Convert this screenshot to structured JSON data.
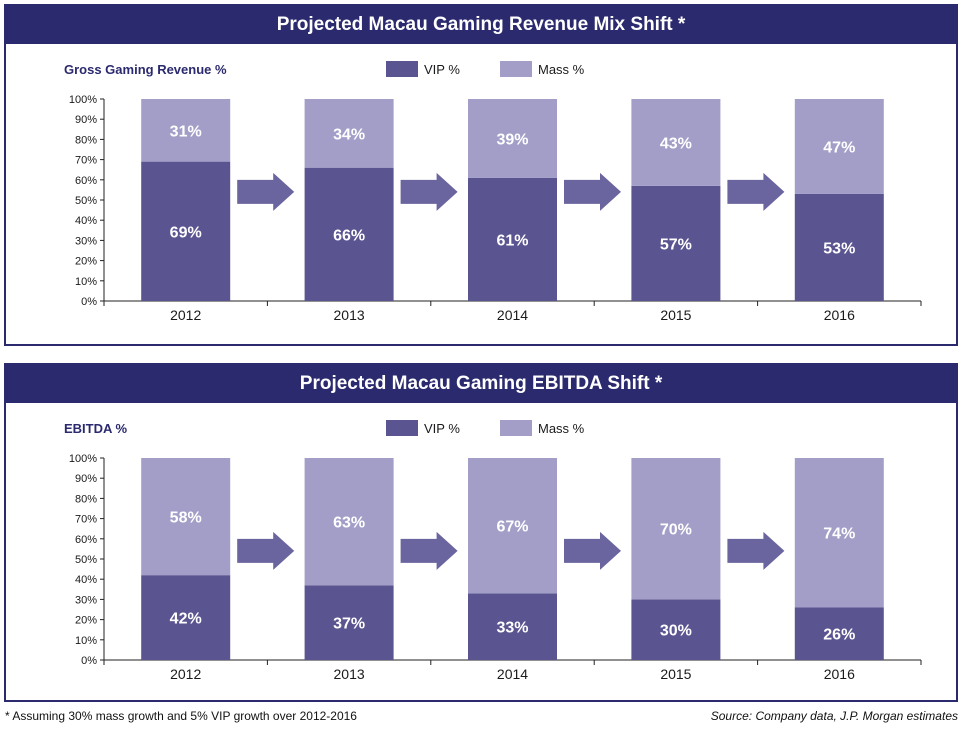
{
  "footnote": "* Assuming 30% mass growth and 5% VIP growth over 2012-2016",
  "source": "Source: Company data, J.P. Morgan estimates",
  "colors": {
    "header": "#2b2a6e",
    "vip": "#5a5490",
    "mass": "#a29ec8",
    "arrow": "#6a659e"
  },
  "chart_data": [
    {
      "type": "bar",
      "stacked": true,
      "title": "Projected Macau Gaming Revenue Mix Shift *",
      "ylabel": "Gross Gaming Revenue %",
      "categories": [
        "2012",
        "2013",
        "2014",
        "2015",
        "2016"
      ],
      "series": [
        {
          "name": "VIP %",
          "values": [
            69,
            66,
            61,
            57,
            53
          ]
        },
        {
          "name": "Mass %",
          "values": [
            31,
            34,
            39,
            43,
            47
          ]
        }
      ],
      "yticks": [
        "0%",
        "10%",
        "20%",
        "30%",
        "40%",
        "50%",
        "60%",
        "70%",
        "80%",
        "90%",
        "100%"
      ],
      "ylim": [
        0,
        100
      ],
      "legend": "top-center"
    },
    {
      "type": "bar",
      "stacked": true,
      "title": "Projected Macau Gaming EBITDA Shift *",
      "ylabel": "EBITDA  %",
      "categories": [
        "2012",
        "2013",
        "2014",
        "2015",
        "2016"
      ],
      "series": [
        {
          "name": "VIP %",
          "values": [
            42,
            37,
            33,
            30,
            26
          ]
        },
        {
          "name": "Mass %",
          "values": [
            58,
            63,
            67,
            70,
            74
          ]
        }
      ],
      "yticks": [
        "0%",
        "10%",
        "20%",
        "30%",
        "40%",
        "50%",
        "60%",
        "70%",
        "80%",
        "90%",
        "100%"
      ],
      "ylim": [
        0,
        100
      ],
      "legend": "top-center"
    }
  ]
}
